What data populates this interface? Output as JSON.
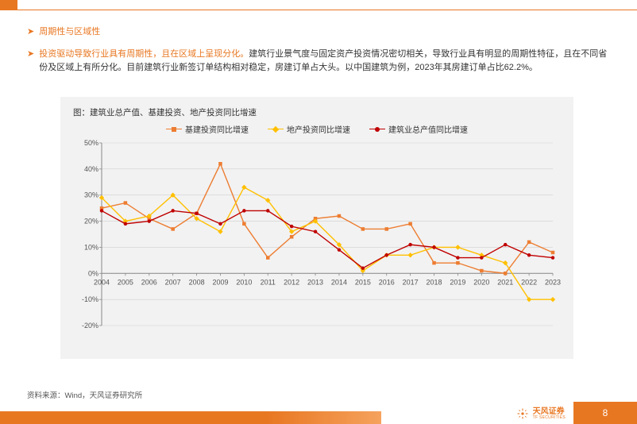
{
  "heading1": "周期性与区域性",
  "heading2_lead": "投资驱动导致行业具有周期性，且在区域上呈现分化。",
  "body": "建筑行业景气度与固定资产投资情况密切相关，导致行业具有明显的周期性特征，且在不同省份及区域上有所分化。目前建筑行业新签订单结构相对稳定，房建订单占大头。以中国建筑为例，2023年其房建订单占比62.2%。",
  "chart": {
    "title": "图：建筑业总产值、基建投资、地产投资同比增速",
    "legend": [
      {
        "label": "基建投资同比增速",
        "marker": "square",
        "color": "#ed7d31"
      },
      {
        "label": "地产投资同比增速",
        "marker": "diamond",
        "color": "#ffc000"
      },
      {
        "label": "建筑业总产值同比增速",
        "marker": "circle",
        "color": "#c00000"
      }
    ],
    "categories": [
      "2004",
      "2005",
      "2006",
      "2007",
      "2008",
      "2009",
      "2010",
      "2011",
      "2012",
      "2013",
      "2014",
      "2015",
      "2016",
      "2017",
      "2018",
      "2019",
      "2020",
      "2021",
      "2022",
      "2023"
    ],
    "series": {
      "infra": [
        25,
        27,
        21,
        17,
        23,
        42,
        19,
        6,
        14,
        21,
        22,
        17,
        17,
        19,
        4,
        4,
        1,
        0,
        12,
        8
      ],
      "realest": [
        29,
        20,
        22,
        30,
        21,
        16,
        33,
        28,
        16,
        20,
        11,
        1,
        7,
        7,
        10,
        10,
        7,
        4,
        -10,
        -10
      ],
      "constr": [
        24,
        19,
        20,
        24,
        23,
        19,
        24,
        24,
        18,
        16,
        9,
        2,
        7,
        11,
        10,
        6,
        6,
        11,
        7,
        6
      ]
    },
    "y_ticks": [
      -20,
      -10,
      0,
      10,
      20,
      30,
      40,
      50
    ],
    "y_tick_labels": [
      "-20%",
      "-10%",
      "0%",
      "10%",
      "20%",
      "30%",
      "40%",
      "50%"
    ],
    "ylim": [
      -20,
      50
    ],
    "colors": {
      "infra": "#ed7d31",
      "realest": "#ffc000",
      "constr": "#c00000",
      "axis": "#888888",
      "grid": "#cfcfcf",
      "tick_text": "#555555",
      "panel_bg": "#f2f2f2"
    },
    "line_width": 1.4,
    "marker_size": 4.5,
    "tick_fontsize": 9
  },
  "source": "资料来源：Wind，天风证券研究所",
  "logo_text": "天风证券",
  "logo_sub": "TF SECURITIES",
  "page": "8"
}
